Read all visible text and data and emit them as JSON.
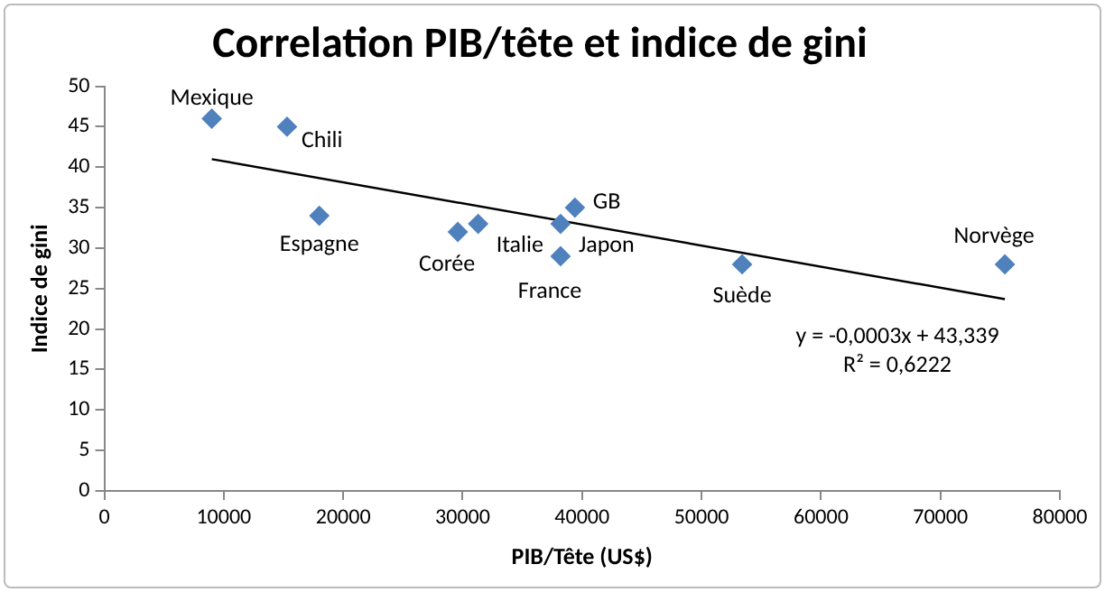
{
  "chart_data": {
    "type": "scatter",
    "title": "Correlation PIB/tête et indice de gini",
    "xlabel": "PIB/Tête (US$)",
    "ylabel": "Indice de gini",
    "x": [
      9000,
      15300,
      18000,
      29600,
      31300,
      38200,
      38200,
      39400,
      53400,
      75400
    ],
    "series": [
      {
        "color": "#4f81bd",
        "values": [
          46,
          45,
          34,
          32,
          33,
          33,
          29,
          35,
          28,
          28
        ]
      },
      {
        "type": "line",
        "marker": "none",
        "color": "#000000",
        "x": [
          9000,
          75400
        ],
        "values": [
          41.0,
          23.7
        ]
      }
    ],
    "marker": "diamond",
    "xlim": [
      0,
      80000
    ],
    "xticks": [
      0,
      10000,
      20000,
      30000,
      40000,
      50000,
      60000,
      70000,
      80000
    ],
    "ylim": [
      0,
      50
    ],
    "yticks": [
      0,
      5,
      10,
      15,
      20,
      25,
      30,
      35,
      40,
      45,
      50
    ],
    "grid": false,
    "legend": false,
    "annotations": [
      {
        "text": "Mexique",
        "x": 9000,
        "y": 46
      },
      {
        "text": "Chili",
        "x": 15300,
        "y": 45
      },
      {
        "text": "Espagne",
        "x": 18000,
        "y": 34
      },
      {
        "text": "Corée",
        "x": 29600,
        "y": 32
      },
      {
        "text": "Italie",
        "x": 31300,
        "y": 33
      },
      {
        "text": "Japon",
        "x": 38200,
        "y": 33
      },
      {
        "text": "France",
        "x": 38200,
        "y": 29
      },
      {
        "text": "GB",
        "x": 39400,
        "y": 35
      },
      {
        "text": "Suède",
        "x": 53400,
        "y": 28
      },
      {
        "text": "Norvège",
        "x": 75400,
        "y": 28
      },
      "y = -0,0003x + 43,339",
      "R² = 0,6222"
    ]
  }
}
